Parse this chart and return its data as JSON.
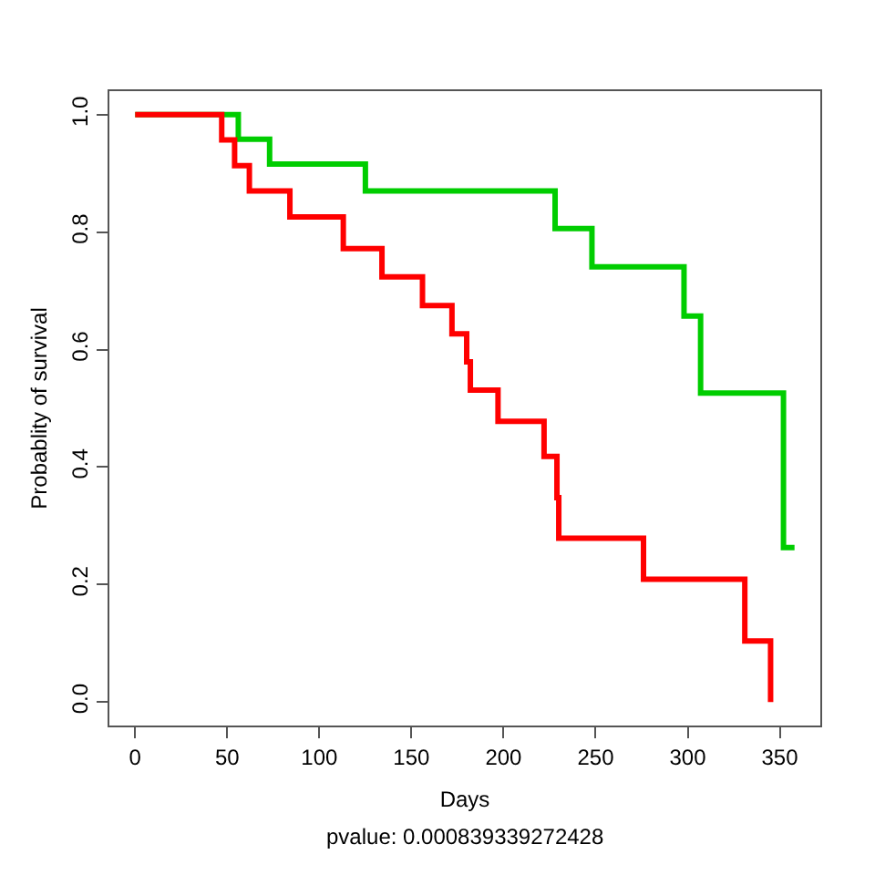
{
  "chart_data": {
    "type": "step",
    "xlabel": "Days",
    "ylabel": "Probablity of survival",
    "annotations": [
      "pvalue: 0.000839339272428"
    ],
    "xlim": [
      -14,
      372
    ],
    "ylim": [
      -0.04,
      1.04
    ],
    "xticks": [
      0,
      50,
      100,
      150,
      200,
      250,
      300,
      350
    ],
    "yticks": [
      {
        "value": 0,
        "label": "0.0"
      },
      {
        "value": 0.2,
        "label": "0.2"
      },
      {
        "value": 0.4,
        "label": "0.4"
      },
      {
        "value": 0.6,
        "label": "0.6"
      },
      {
        "value": 0.8,
        "label": "0.8"
      },
      {
        "value": 1,
        "label": "1.0"
      }
    ],
    "grid": false,
    "line_style": "solid",
    "marker": "none",
    "series": [
      {
        "color": "#00cd00",
        "x": [
          0,
          56,
          73,
          125,
          228,
          248,
          298,
          307,
          352,
          358
        ],
        "values": [
          1.0,
          0.958,
          0.916,
          0.87,
          0.806,
          0.741,
          0.657,
          0.526,
          0.263,
          0.263
        ]
      },
      {
        "color": "#ff0000",
        "x": [
          0,
          47,
          54,
          62,
          84,
          113,
          134,
          156,
          172,
          180,
          182,
          197,
          222,
          229,
          230,
          276,
          331,
          345
        ],
        "values": [
          1.0,
          0.957,
          0.913,
          0.87,
          0.826,
          0.772,
          0.724,
          0.675,
          0.627,
          0.579,
          0.531,
          0.478,
          0.418,
          0.348,
          0.279,
          0.209,
          0.104,
          0.0
        ]
      }
    ]
  }
}
